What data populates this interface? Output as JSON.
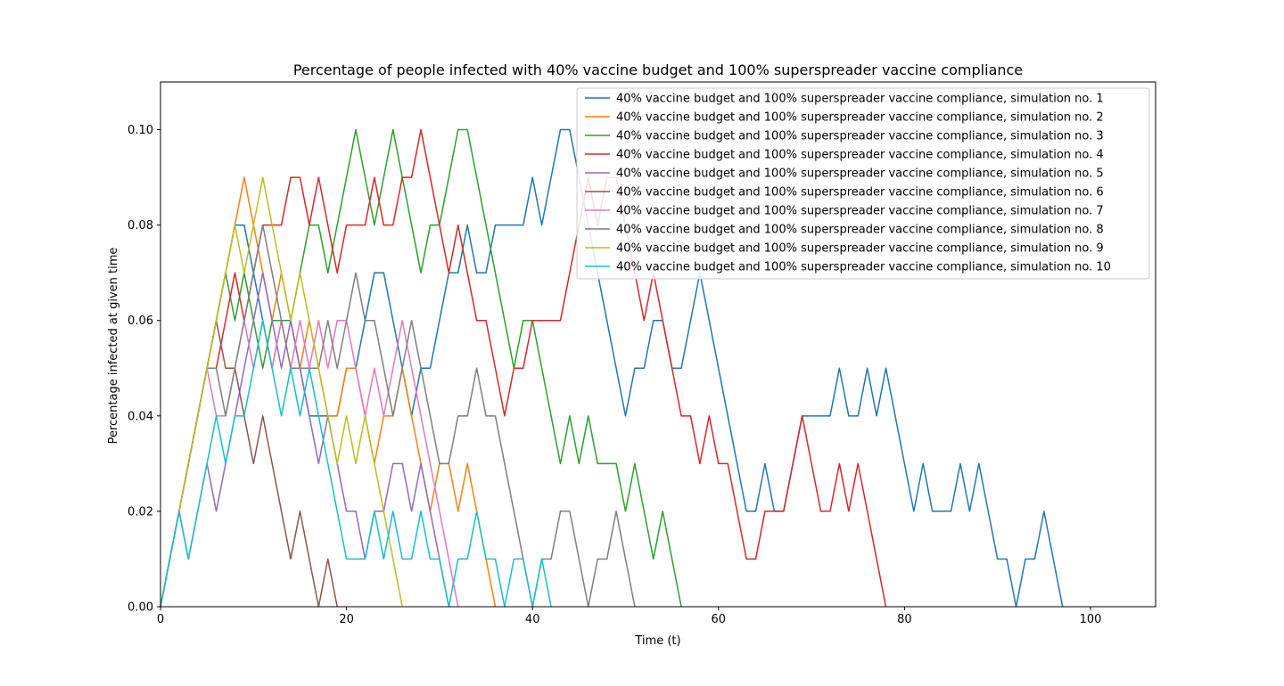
{
  "chart_data": {
    "type": "line",
    "title": "Percentage of people infected with 40% vaccine budget and 100% superspreader vaccine compliance",
    "xlabel": "Time (t)",
    "ylabel": "Percentage infected at given time",
    "xlim": [
      0,
      107
    ],
    "ylim": [
      0,
      0.11
    ],
    "xticks": [
      0,
      20,
      40,
      60,
      80,
      100
    ],
    "xtick_labels": [
      "0",
      "20",
      "40",
      "60",
      "80",
      "100"
    ],
    "yticks": [
      0.0,
      0.02,
      0.04,
      0.06,
      0.08,
      0.1
    ],
    "ytick_labels": [
      "0.00",
      "0.02",
      "0.04",
      "0.06",
      "0.08",
      "0.10"
    ],
    "grid": false,
    "legend_position": "top-right",
    "series": [
      {
        "name": "40% vaccine budget and 100% superspreader vaccine compliance, simulation no. 1",
        "color": "#1f77b4",
        "values": [
          0,
          0.01,
          0.02,
          0.03,
          0.04,
          0.05,
          0.06,
          0.07,
          0.08,
          0.08,
          0.07,
          0.06,
          0.05,
          0.06,
          0.06,
          0.05,
          0.04,
          0.04,
          0.04,
          0.04,
          0.05,
          0.05,
          0.06,
          0.07,
          0.07,
          0.06,
          0.05,
          0.04,
          0.05,
          0.05,
          0.06,
          0.07,
          0.07,
          0.08,
          0.07,
          0.07,
          0.08,
          0.08,
          0.08,
          0.08,
          0.09,
          0.08,
          0.09,
          0.1,
          0.1,
          0.09,
          0.08,
          0.07,
          0.06,
          0.05,
          0.04,
          0.05,
          0.05,
          0.06,
          0.06,
          0.05,
          0.05,
          0.06,
          0.07,
          0.06,
          0.05,
          0.04,
          0.03,
          0.02,
          0.02,
          0.03,
          0.02,
          0.02,
          0.03,
          0.04,
          0.04,
          0.04,
          0.04,
          0.05,
          0.04,
          0.04,
          0.05,
          0.04,
          0.05,
          0.04,
          0.03,
          0.02,
          0.03,
          0.02,
          0.02,
          0.02,
          0.03,
          0.02,
          0.03,
          0.02,
          0.01,
          0.01,
          0.0,
          0.01,
          0.01,
          0.02,
          0.01,
          0.0
        ]
      },
      {
        "name": "40% vaccine budget and 100% superspreader vaccine compliance, simulation no. 2",
        "color": "#ff7f0e",
        "values": [
          0,
          0.01,
          0.02,
          0.03,
          0.04,
          0.05,
          0.06,
          0.07,
          0.08,
          0.09,
          0.08,
          0.07,
          0.06,
          0.07,
          0.06,
          0.05,
          0.06,
          0.05,
          0.04,
          0.04,
          0.05,
          0.05,
          0.04,
          0.03,
          0.04,
          0.04,
          0.05,
          0.04,
          0.03,
          0.02,
          0.03,
          0.03,
          0.02,
          0.03,
          0.02,
          0.01,
          0.0
        ]
      },
      {
        "name": "40% vaccine budget and 100% superspreader vaccine compliance, simulation no. 3",
        "color": "#2ca02c",
        "values": [
          0,
          0.01,
          0.02,
          0.03,
          0.04,
          0.05,
          0.06,
          0.07,
          0.06,
          0.07,
          0.06,
          0.05,
          0.06,
          0.06,
          0.06,
          0.07,
          0.08,
          0.08,
          0.07,
          0.08,
          0.09,
          0.1,
          0.09,
          0.08,
          0.09,
          0.1,
          0.09,
          0.08,
          0.07,
          0.08,
          0.08,
          0.09,
          0.1,
          0.1,
          0.09,
          0.08,
          0.07,
          0.06,
          0.05,
          0.06,
          0.06,
          0.05,
          0.04,
          0.03,
          0.04,
          0.03,
          0.04,
          0.03,
          0.03,
          0.03,
          0.02,
          0.03,
          0.02,
          0.01,
          0.02,
          0.01,
          0.0
        ]
      },
      {
        "name": "40% vaccine budget and 100% superspreader vaccine compliance, simulation no. 4",
        "color": "#d62728",
        "values": [
          0,
          0.01,
          0.02,
          0.03,
          0.04,
          0.05,
          0.05,
          0.06,
          0.07,
          0.06,
          0.07,
          0.08,
          0.08,
          0.08,
          0.09,
          0.09,
          0.08,
          0.09,
          0.08,
          0.07,
          0.08,
          0.08,
          0.08,
          0.09,
          0.08,
          0.08,
          0.09,
          0.09,
          0.1,
          0.09,
          0.08,
          0.07,
          0.08,
          0.07,
          0.06,
          0.06,
          0.05,
          0.04,
          0.05,
          0.05,
          0.06,
          0.06,
          0.06,
          0.06,
          0.07,
          0.08,
          0.09,
          0.08,
          0.09,
          0.09,
          0.08,
          0.07,
          0.06,
          0.07,
          0.06,
          0.05,
          0.04,
          0.04,
          0.03,
          0.04,
          0.03,
          0.03,
          0.02,
          0.01,
          0.01,
          0.02,
          0.02,
          0.02,
          0.03,
          0.04,
          0.03,
          0.02,
          0.02,
          0.03,
          0.02,
          0.03,
          0.02,
          0.01,
          0.0
        ]
      },
      {
        "name": "40% vaccine budget and 100% superspreader vaccine compliance, simulation no. 5",
        "color": "#9467bd",
        "values": [
          0,
          0.01,
          0.02,
          0.01,
          0.02,
          0.03,
          0.02,
          0.03,
          0.04,
          0.05,
          0.06,
          0.07,
          0.06,
          0.05,
          0.06,
          0.05,
          0.04,
          0.03,
          0.04,
          0.03,
          0.02,
          0.02,
          0.01,
          0.02,
          0.02,
          0.03,
          0.03,
          0.02,
          0.03,
          0.02,
          0.01,
          0.0
        ]
      },
      {
        "name": "40% vaccine budget and 100% superspreader vaccine compliance, simulation no. 6",
        "color": "#8c564b",
        "values": [
          0,
          0.01,
          0.02,
          0.03,
          0.04,
          0.05,
          0.06,
          0.05,
          0.05,
          0.04,
          0.03,
          0.04,
          0.03,
          0.02,
          0.01,
          0.02,
          0.01,
          0.0,
          0.01,
          0.0
        ]
      },
      {
        "name": "40% vaccine budget and 100% superspreader vaccine compliance, simulation no. 7",
        "color": "#e377c2",
        "values": [
          0,
          0.01,
          0.02,
          0.03,
          0.04,
          0.05,
          0.04,
          0.04,
          0.05,
          0.06,
          0.05,
          0.06,
          0.05,
          0.06,
          0.05,
          0.06,
          0.05,
          0.06,
          0.05,
          0.06,
          0.06,
          0.05,
          0.04,
          0.05,
          0.04,
          0.05,
          0.06,
          0.05,
          0.04,
          0.03,
          0.02,
          0.01,
          0.0
        ]
      },
      {
        "name": "40% vaccine budget and 100% superspreader vaccine compliance, simulation no. 8",
        "color": "#7f7f7f",
        "values": [
          0,
          0.01,
          0.02,
          0.03,
          0.04,
          0.05,
          0.05,
          0.04,
          0.05,
          0.06,
          0.07,
          0.08,
          0.07,
          0.06,
          0.05,
          0.05,
          0.05,
          0.05,
          0.06,
          0.05,
          0.06,
          0.07,
          0.06,
          0.06,
          0.05,
          0.04,
          0.05,
          0.06,
          0.05,
          0.04,
          0.03,
          0.03,
          0.04,
          0.04,
          0.05,
          0.04,
          0.04,
          0.03,
          0.02,
          0.01,
          0.0,
          0.01,
          0.01,
          0.02,
          0.02,
          0.01,
          0.0,
          0.01,
          0.01,
          0.02,
          0.01,
          0.0
        ]
      },
      {
        "name": "40% vaccine budget and 100% superspreader vaccine compliance, simulation no. 9",
        "color": "#bcbd22",
        "values": [
          0,
          0.01,
          0.02,
          0.03,
          0.04,
          0.05,
          0.06,
          0.07,
          0.08,
          0.07,
          0.08,
          0.09,
          0.08,
          0.07,
          0.06,
          0.07,
          0.06,
          0.05,
          0.04,
          0.03,
          0.04,
          0.03,
          0.04,
          0.03,
          0.02,
          0.01,
          0.0
        ]
      },
      {
        "name": "40% vaccine budget and 100% superspreader vaccine compliance, simulation no. 10",
        "color": "#17becf",
        "values": [
          0,
          0.01,
          0.02,
          0.01,
          0.02,
          0.03,
          0.04,
          0.03,
          0.04,
          0.04,
          0.05,
          0.06,
          0.05,
          0.04,
          0.05,
          0.04,
          0.05,
          0.04,
          0.03,
          0.02,
          0.01,
          0.01,
          0.01,
          0.02,
          0.01,
          0.02,
          0.01,
          0.01,
          0.02,
          0.01,
          0.01,
          0.0,
          0.01,
          0.01,
          0.02,
          0.01,
          0.01,
          0.0,
          0.01,
          0.01,
          0.0,
          0.01,
          0.0
        ]
      }
    ]
  }
}
